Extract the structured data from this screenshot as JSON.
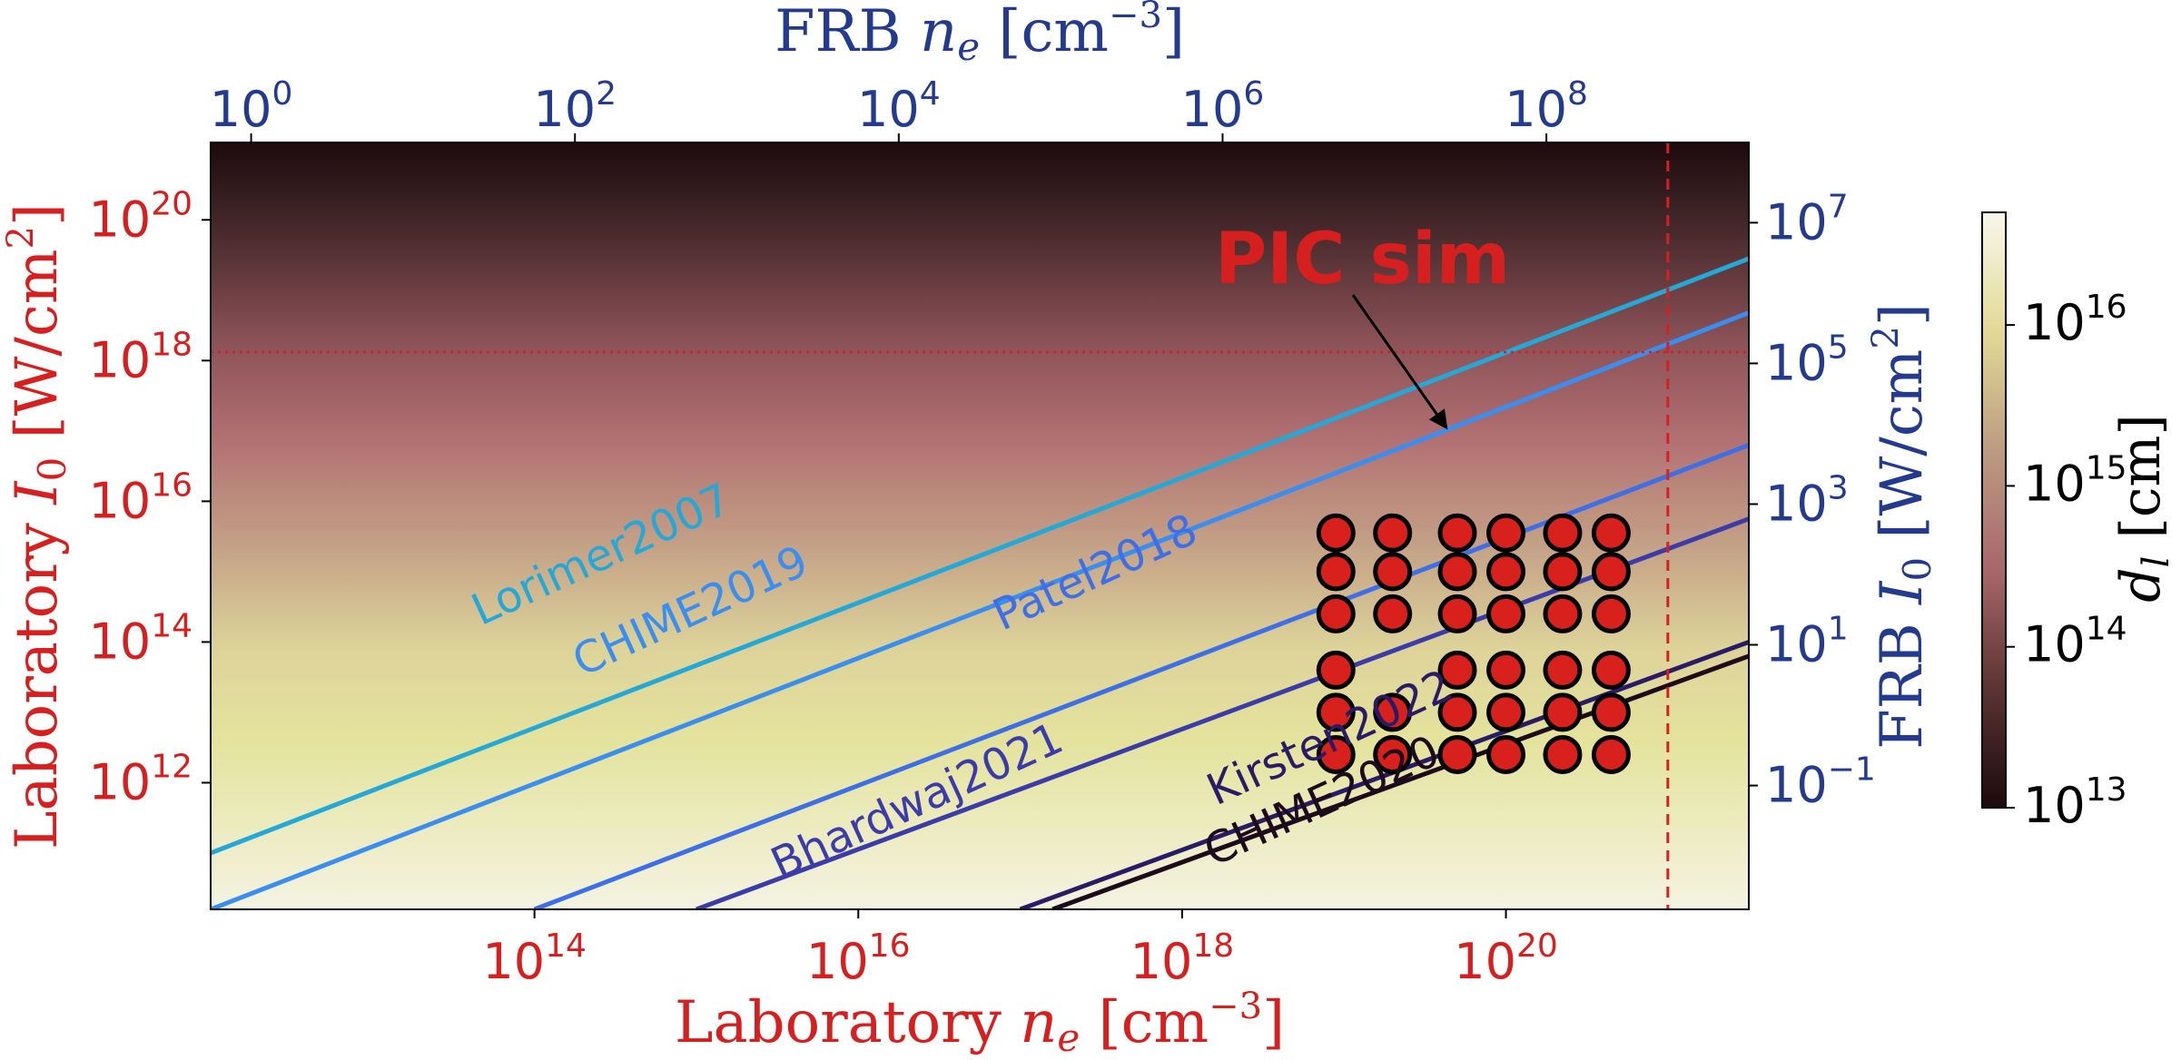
{
  "colors": {
    "red": "#d62020",
    "blue": "#233a8f",
    "marker_fill": "#d8201c",
    "marker_edge": "#000000",
    "threshold": "#d62020"
  },
  "axes": {
    "bottom": {
      "label_prefix": "Laboratory ",
      "label_var": "n",
      "label_sub": "e",
      "label_unit": " [cm",
      "label_exp": "−3",
      "label_end": "]",
      "range_log10": [
        12.0,
        21.5
      ],
      "ticks": [
        {
          "base": "10",
          "exp": "14",
          "value_log10": 14
        },
        {
          "base": "10",
          "exp": "16",
          "value_log10": 16
        },
        {
          "base": "10",
          "exp": "18",
          "value_log10": 18
        },
        {
          "base": "10",
          "exp": "20",
          "value_log10": 20
        }
      ]
    },
    "top": {
      "label_prefix": "FRB ",
      "label_var": "n",
      "label_sub": "e",
      "label_unit": " [cm",
      "label_exp": "−3",
      "label_end": "]",
      "ticks": [
        {
          "base": "10",
          "exp": "0",
          "value_log10": 0
        },
        {
          "base": "10",
          "exp": "2",
          "value_log10": 2
        },
        {
          "base": "10",
          "exp": "4",
          "value_log10": 4
        },
        {
          "base": "10",
          "exp": "6",
          "value_log10": 6
        },
        {
          "base": "10",
          "exp": "8",
          "value_log10": 8
        }
      ]
    },
    "left": {
      "label_prefix": "Laboratory ",
      "label_var": "I",
      "label_sub": "0",
      "label_unit": " [W/cm",
      "label_exp": "2",
      "label_end": "]",
      "range_log10": [
        10.2,
        21.1
      ],
      "ticks": [
        {
          "base": "10",
          "exp": "12",
          "value_log10": 12
        },
        {
          "base": "10",
          "exp": "14",
          "value_log10": 14
        },
        {
          "base": "10",
          "exp": "16",
          "value_log10": 16
        },
        {
          "base": "10",
          "exp": "18",
          "value_log10": 18
        },
        {
          "base": "10",
          "exp": "20",
          "value_log10": 20
        }
      ]
    },
    "right": {
      "label_prefix": "FRB ",
      "label_var": "I",
      "label_sub": "0",
      "label_unit": " [W/cm",
      "label_exp": "2",
      "label_end": "]",
      "ticks": [
        {
          "base": "10",
          "exp": "−1",
          "value_log10": -1
        },
        {
          "base": "10",
          "exp": "1",
          "value_log10": 1
        },
        {
          "base": "10",
          "exp": "3",
          "value_log10": 3
        },
        {
          "base": "10",
          "exp": "5",
          "value_log10": 5
        },
        {
          "base": "10",
          "exp": "7",
          "value_log10": 7
        }
      ]
    }
  },
  "colorbar": {
    "label_var": "d",
    "label_sub": "l",
    "label_unit": " [cm]",
    "range_log10": [
      13.0,
      16.7
    ],
    "colormap": [
      "#1c0a0d",
      "#5b3332",
      "#a8676b",
      "#bc9b82",
      "#e2d996",
      "#f8f7ec"
    ],
    "ticks": [
      {
        "base": "10",
        "exp": "13",
        "value_log10": 13
      },
      {
        "base": "10",
        "exp": "14",
        "value_log10": 14
      },
      {
        "base": "10",
        "exp": "15",
        "value_log10": 15
      },
      {
        "base": "10",
        "exp": "16",
        "value_log10": 16
      }
    ]
  },
  "chart_data": {
    "type": "line",
    "xscale": "log",
    "yscale": "log",
    "x_range_log10": [
      12.0,
      21.5
    ],
    "y_range_log10": [
      10.2,
      21.1
    ],
    "grid": false,
    "series": [
      {
        "name": "Lorimer2007",
        "color": "#24a8d8",
        "endpoints_log10": [
          [
            12.0,
            11.0
          ],
          [
            21.5,
            19.45
          ]
        ],
        "label_at_log10": [
          14.45,
          15.05
        ],
        "label_angle": -24.6
      },
      {
        "name": "CHIME2019",
        "color": "#3a8ef0",
        "endpoints_log10": [
          [
            12.0,
            10.2
          ],
          [
            21.5,
            18.68
          ]
        ],
        "label_at_log10": [
          15.0,
          14.25
        ],
        "label_angle": -24.6
      },
      {
        "name": "Patel2018",
        "color": "#3f6fe6",
        "endpoints_log10": [
          [
            14.0,
            10.2
          ],
          [
            21.5,
            16.8
          ]
        ],
        "label_at_log10": [
          17.5,
          14.8
        ],
        "label_angle": -24.6
      },
      {
        "name": "Bhardwaj2021",
        "color": "#3b3caa",
        "endpoints_log10": [
          [
            15.0,
            10.2
          ],
          [
            21.5,
            15.75
          ]
        ],
        "label_at_log10": [
          16.4,
          11.55
        ],
        "label_angle": -24.6
      },
      {
        "name": "Kirsten2022",
        "color": "#2a1b66",
        "endpoints_log10": [
          [
            17.0,
            10.2
          ],
          [
            21.5,
            14.0
          ]
        ],
        "label_at_log10": [
          18.95,
          12.45
        ],
        "label_angle": -24.6
      },
      {
        "name": "CHIME2020",
        "color": "#1d0a1c",
        "endpoints_log10": [
          [
            17.2,
            10.2
          ],
          [
            21.5,
            13.8
          ]
        ],
        "label_at_log10": [
          18.9,
          11.55
        ],
        "label_angle": -24.6
      }
    ],
    "pic_sim": {
      "label": "PIC sim",
      "x_log10": [
        18.95,
        19.3,
        19.7,
        20.0,
        20.35,
        20.65
      ],
      "y_log10": [
        15.55,
        15.0,
        14.4,
        13.6,
        13.0,
        12.4
      ],
      "missing": [
        [
          19.3,
          13.6
        ]
      ]
    },
    "threshold_x_log10": 21.0,
    "threshold_y_log10": 18.12
  }
}
